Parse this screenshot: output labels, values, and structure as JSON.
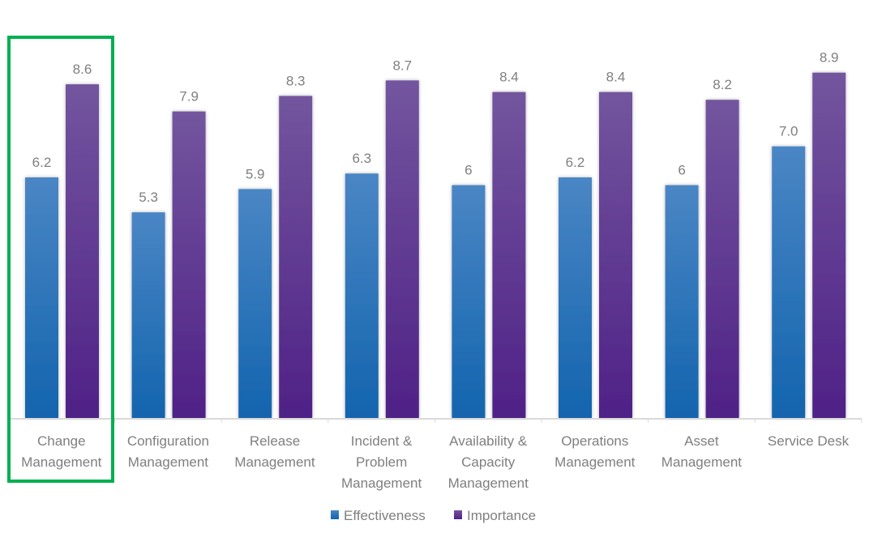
{
  "chart_data": {
    "type": "bar",
    "categories": [
      [
        "Change",
        "Management"
      ],
      [
        "Configuration",
        "Management"
      ],
      [
        "Release",
        "Management"
      ],
      [
        "Incident &",
        "Problem",
        "Management"
      ],
      [
        "Availability &",
        "Capacity",
        "Management"
      ],
      [
        "Operations",
        "Management"
      ],
      [
        "Asset",
        "Management"
      ],
      [
        "Service Desk"
      ]
    ],
    "series": [
      {
        "name": "Effectiveness",
        "values": [
          6.2,
          5.3,
          5.9,
          6.3,
          6.0,
          6.2,
          6.0,
          7.0
        ],
        "labels": [
          "6.2",
          "5.3",
          "5.9",
          "6.3",
          "6",
          "6.2",
          "6",
          "7.0"
        ],
        "color": "#1f6fb5"
      },
      {
        "name": "Importance",
        "values": [
          8.6,
          7.9,
          8.3,
          8.7,
          8.4,
          8.4,
          8.2,
          8.9
        ],
        "labels": [
          "8.6",
          "7.9",
          "8.3",
          "8.7",
          "8.4",
          "8.4",
          "8.2",
          "8.9"
        ],
        "color": "#5c2d91"
      }
    ],
    "ylim": [
      0,
      10
    ],
    "grid": false,
    "legend": "bottom",
    "highlighted_category": 0,
    "highlight_color": "#00b050"
  }
}
